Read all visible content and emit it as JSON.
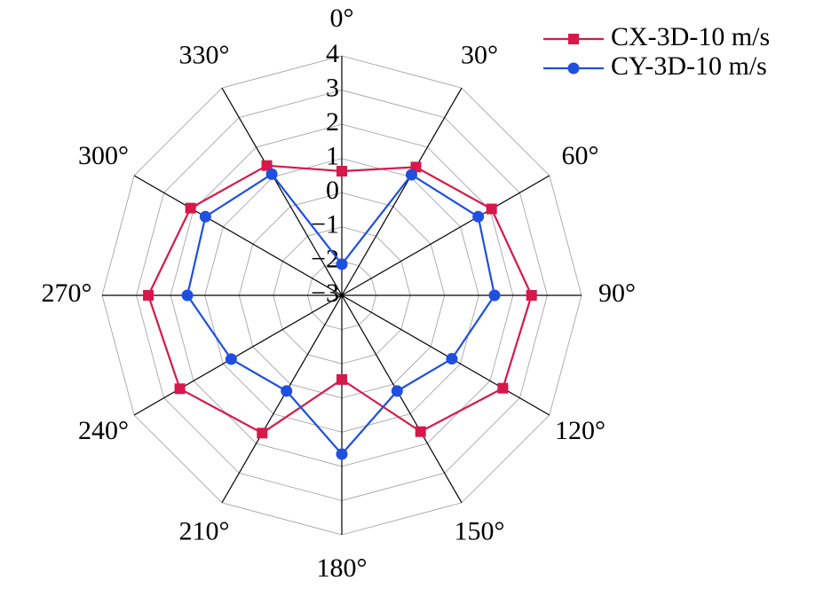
{
  "chart_data": {
    "type": "radar",
    "categories": [
      "0°",
      "30°",
      "60°",
      "90°",
      "120°",
      "150°",
      "180°",
      "210°",
      "240°",
      "270°",
      "300°",
      "330°"
    ],
    "ylim": [
      -3,
      4
    ],
    "yticks": [
      {
        "value": -3,
        "label": "−3"
      },
      {
        "value": -2,
        "label": "−2"
      },
      {
        "value": -1,
        "label": "−1"
      },
      0,
      1,
      2,
      3,
      4
    ],
    "grid": true,
    "legend": "top-right",
    "series": [
      {
        "name": "CX-3D-10 m/s",
        "color": "#d6194a",
        "marker": "square",
        "values": [
          0.63,
          1.33,
          2.05,
          2.54,
          2.43,
          1.6,
          -0.54,
          1.65,
          2.46,
          2.65,
          2.1,
          1.38
        ]
      },
      {
        "name": "CY-3D-10 m/s",
        "color": "#1f4fe0",
        "marker": "circle",
        "values": [
          -2.09,
          1.07,
          1.6,
          1.46,
          0.71,
          0.23,
          1.64,
          0.23,
          0.73,
          1.51,
          1.6,
          1.09
        ]
      }
    ]
  }
}
